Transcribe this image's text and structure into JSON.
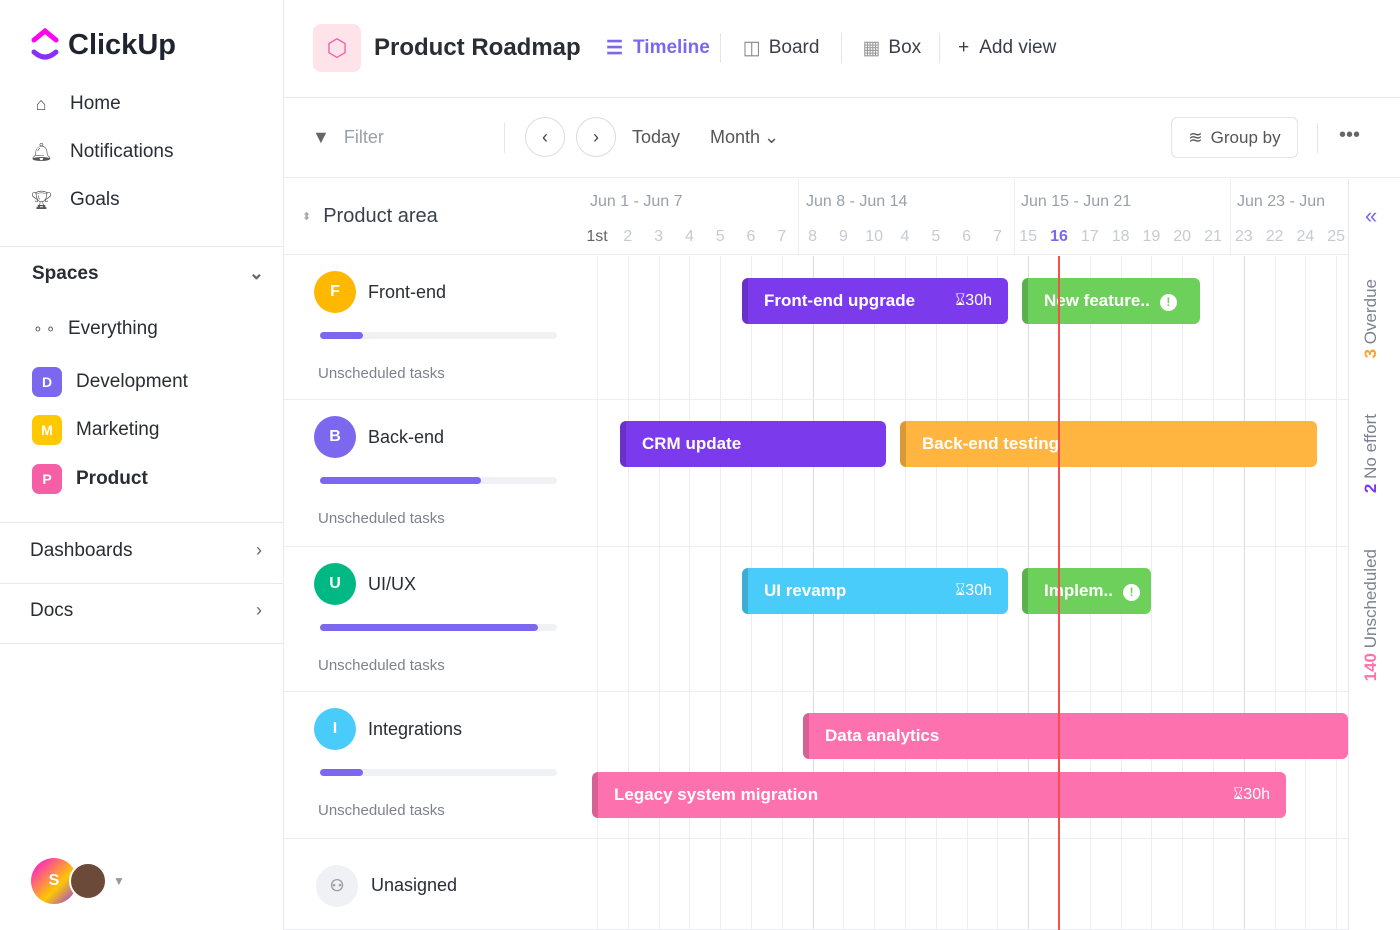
{
  "app": {
    "name": "ClickUp"
  },
  "sidebar": {
    "nav": [
      {
        "label": "Home",
        "icon": "home-icon"
      },
      {
        "label": "Notifications",
        "icon": "bell-icon"
      },
      {
        "label": "Goals",
        "icon": "trophy-icon"
      }
    ],
    "spaces_label": "Spaces",
    "spaces": [
      {
        "label": "Everything",
        "icon": "grid-icon"
      },
      {
        "label": "Development",
        "letter": "D",
        "color": "#7b68ee"
      },
      {
        "label": "Marketing",
        "letter": "M",
        "color": "#ffc800"
      },
      {
        "label": "Product",
        "letter": "P",
        "color": "#f65fa5"
      }
    ],
    "dashboards": "Dashboards",
    "docs": "Docs",
    "user_initial": "S"
  },
  "header": {
    "title": "Product Roadmap",
    "views": [
      {
        "label": "Timeline",
        "active": true
      },
      {
        "label": "Board"
      },
      {
        "label": "Box"
      },
      {
        "label": "Add view"
      }
    ]
  },
  "toolbar": {
    "filter": "Filter",
    "today": "Today",
    "month": "Month",
    "group_by": "Group by"
  },
  "timeline": {
    "group_header": "Product area",
    "weeks": [
      "Jun 1 - Jun 7",
      "Jun 8 - Jun 14",
      "Jun 15 - Jun 21",
      "Jun 23 - Jun"
    ],
    "days": [
      "1st",
      "2",
      "3",
      "4",
      "5",
      "6",
      "7",
      "8",
      "9",
      "10",
      "4",
      "5",
      "6",
      "7",
      "15",
      "16",
      "17",
      "18",
      "19",
      "20",
      "21",
      "23",
      "22",
      "24",
      "25"
    ],
    "today_day": "16",
    "groups": [
      {
        "letter": "F",
        "name": "Front-end",
        "color": "#ffb800",
        "progress": 0.18,
        "unscheduled": "Unscheduled tasks"
      },
      {
        "letter": "B",
        "name": "Back-end",
        "color": "#7b68ee",
        "progress": 0.68,
        "unscheduled": "Unscheduled tasks"
      },
      {
        "letter": "U",
        "name": "UI/UX",
        "color": "#00b884",
        "progress": 0.92,
        "unscheduled": "Unscheduled tasks"
      },
      {
        "letter": "I",
        "name": "Integrations",
        "color": "#49ccf9",
        "progress": 0.18,
        "unscheduled": "Unscheduled tasks"
      },
      {
        "name": "Unasigned"
      }
    ],
    "tasks": [
      {
        "label": "Front-end upgrade",
        "hours": "30h",
        "color": "#7c3aed"
      },
      {
        "label": "New feature..",
        "color": "#6dd05a",
        "warning": true
      },
      {
        "label": "CRM update",
        "color": "#7c3aed"
      },
      {
        "label": "Back-end testing",
        "color": "#ffb53f"
      },
      {
        "label": "UI revamp",
        "hours": "30h",
        "color": "#49ccf9"
      },
      {
        "label": "Implem..",
        "color": "#6dd05a",
        "warning": true
      },
      {
        "label": "Data analytics",
        "color": "#fd71af"
      },
      {
        "label": "Legacy system migration",
        "hours": "30h",
        "color": "#fd71af"
      }
    ]
  },
  "right_panel": {
    "overdue_count": "3",
    "overdue": "Overdue",
    "no_effort_count": "2",
    "no_effort": "No effort",
    "unscheduled_count": "140",
    "unscheduled": "Unscheduled"
  }
}
